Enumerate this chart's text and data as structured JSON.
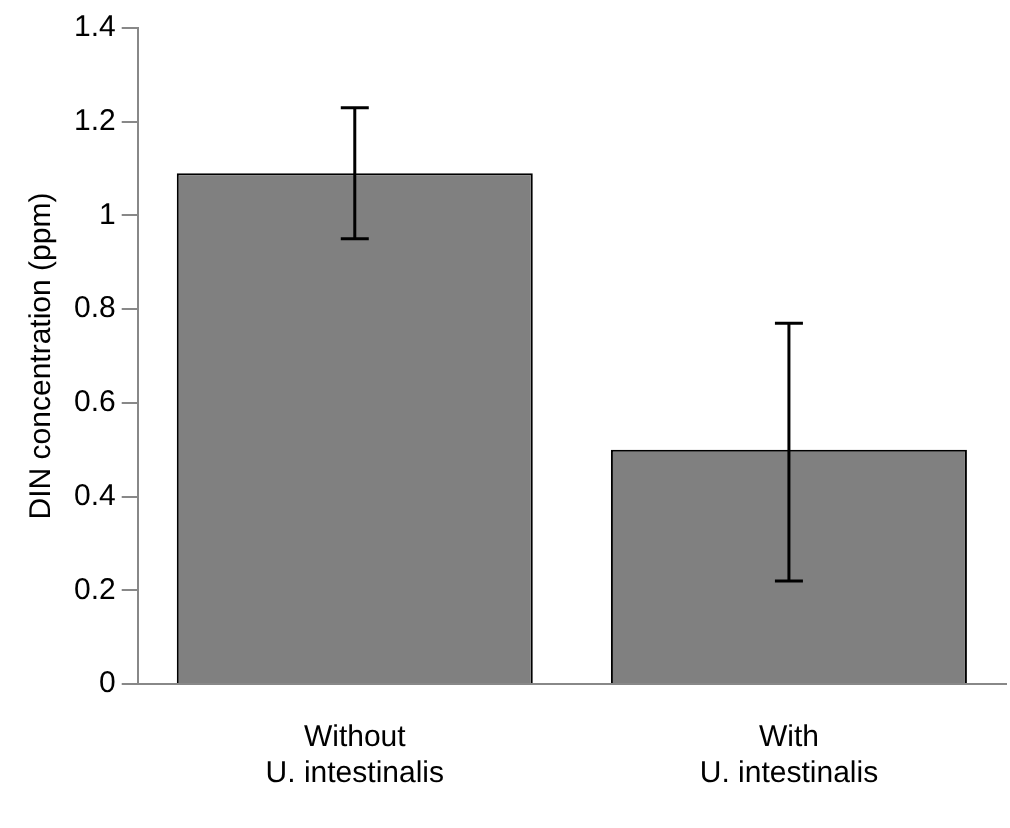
{
  "chart_data": {
    "type": "bar",
    "ylabel": "DIN concentration (ppm)",
    "categories": [
      "Without\nU. intestinalis",
      "With\nU. intestinalis"
    ],
    "values": [
      1.09,
      0.5
    ],
    "errors": [
      [
        0.95,
        1.23
      ],
      [
        0.22,
        0.77
      ]
    ],
    "color": "#808080",
    "ylim": [
      0,
      1.4
    ],
    "yticks": [
      0,
      0.2,
      0.4,
      0.6,
      0.8,
      1,
      1.2,
      1.4
    ],
    "grid": false,
    "legend": false
  }
}
